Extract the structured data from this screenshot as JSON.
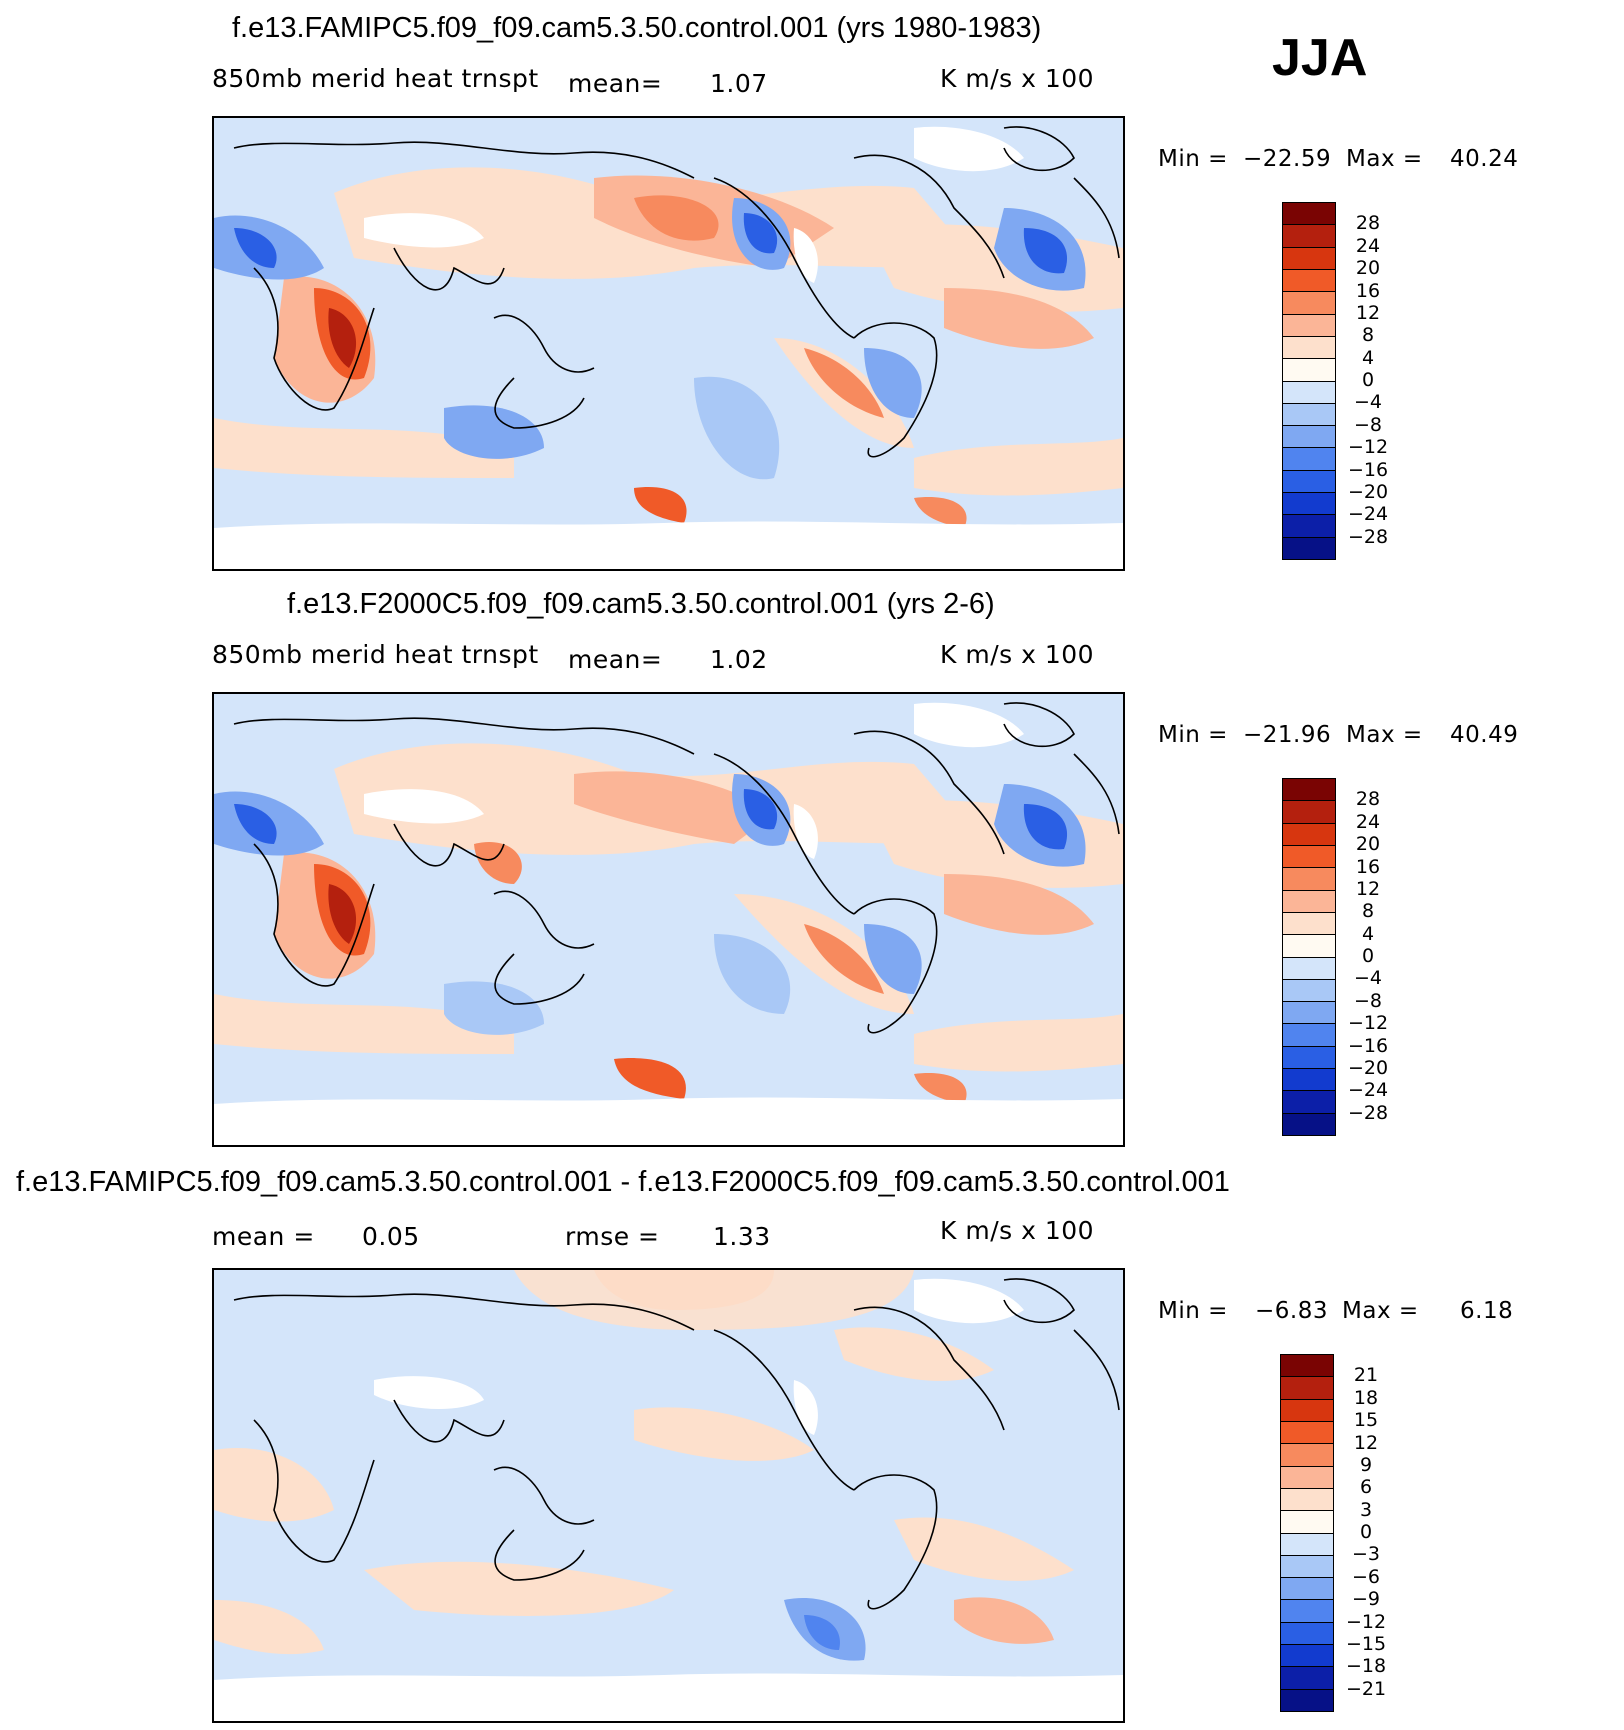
{
  "season": "JJA",
  "panels": [
    {
      "title": "f.e13.FAMIPC5.f09_f09.cam5.3.50.control.001 (yrs 1980-1983)",
      "variable": "850mb merid heat trnspt",
      "mean_label": "mean=",
      "mean_value": "1.07",
      "rmse_label": "",
      "rmse_value": "",
      "units": "K m/s x 100",
      "min_label": "Min =",
      "min_value": "−22.59",
      "max_label": "Max =",
      "max_value": "40.24",
      "colorbar": {
        "labels": [
          "28",
          "24",
          "20",
          "16",
          "12",
          "8",
          "4",
          "0",
          "−4",
          "−8",
          "−12",
          "−16",
          "−20",
          "−24",
          "−28"
        ],
        "colors": [
          "#7a0403",
          "#b4200e",
          "#d7360f",
          "#f05a28",
          "#f78a5e",
          "#fbb597",
          "#fde0cc",
          "#fffaf2",
          "#d4e5fa",
          "#a9c8f6",
          "#7fa8f2",
          "#5084ef",
          "#2a5fe4",
          "#123bcf",
          "#0c1fa8",
          "#061187"
        ]
      },
      "map_features": [
        "stripe-ne-pacific-negative",
        "asia-subtropic-positive",
        "east-africa-positive",
        "n-atlantic-negative",
        "south-pacific-negative",
        "antarctic-peninsula-positive"
      ]
    },
    {
      "title": "f.e13.F2000C5.f09_f09.cam5.3.50.control.001 (yrs 2-6)",
      "variable": "850mb merid heat trnspt",
      "mean_label": "mean=",
      "mean_value": "1.02",
      "rmse_label": "",
      "rmse_value": "",
      "units": "K m/s x 100",
      "min_label": "Min =",
      "min_value": "−21.96",
      "max_label": "Max =",
      "max_value": "40.49",
      "colorbar": {
        "labels": [
          "28",
          "24",
          "20",
          "16",
          "12",
          "8",
          "4",
          "0",
          "−4",
          "−8",
          "−12",
          "−16",
          "−20",
          "−24",
          "−28"
        ],
        "colors": [
          "#7a0403",
          "#b4200e",
          "#d7360f",
          "#f05a28",
          "#f78a5e",
          "#fbb597",
          "#fde0cc",
          "#fffaf2",
          "#d4e5fa",
          "#a9c8f6",
          "#7fa8f2",
          "#5084ef",
          "#2a5fe4",
          "#123bcf",
          "#0c1fa8",
          "#061187"
        ]
      }
    },
    {
      "title": "f.e13.FAMIPC5.f09_f09.cam5.3.50.control.001 - f.e13.F2000C5.f09_f09.cam5.3.50.control.001",
      "variable": "",
      "mean_label": "mean =",
      "mean_value": "0.05",
      "rmse_label": "rmse =",
      "rmse_value": "1.33",
      "units": "K m/s x 100",
      "min_label": "Min =",
      "min_value": "−6.83",
      "max_label": "Max =",
      "max_value": "6.18",
      "colorbar": {
        "labels": [
          "21",
          "18",
          "15",
          "12",
          "9",
          "6",
          "3",
          "0",
          "−3",
          "−6",
          "−9",
          "−12",
          "−15",
          "−18",
          "−21"
        ],
        "colors": [
          "#7a0403",
          "#b4200e",
          "#d7360f",
          "#f05a28",
          "#f78a5e",
          "#fbb597",
          "#fde0cc",
          "#fffaf2",
          "#d4e5fa",
          "#a9c8f6",
          "#7fa8f2",
          "#5084ef",
          "#2a5fe4",
          "#123bcf",
          "#0c1fa8",
          "#061187"
        ]
      }
    }
  ]
}
